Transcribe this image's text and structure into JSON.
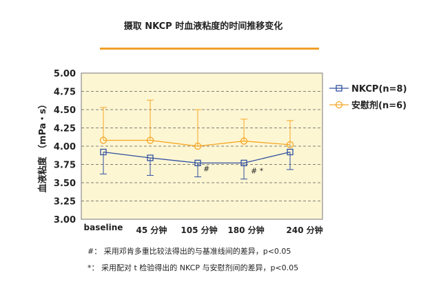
{
  "chart_data": {
    "type": "line",
    "title": "摄取 NKCP 时血液粘度的时间推移变化",
    "xlabel": "",
    "ylabel": "血液粘度 （mPa・s）",
    "ylim": [
      3.0,
      5.0
    ],
    "yticks": [
      "3.00",
      "3.25",
      "3.50",
      "3.75",
      "4.00",
      "4.25",
      "4.50",
      "4.75",
      "5.00"
    ],
    "grid": true,
    "legend": "right",
    "categories": [
      "baseline",
      "45 分钟",
      "105 分钟",
      "180 分钟",
      "240 分钟"
    ],
    "series": [
      {
        "name": "NKCP(n=8)",
        "color": "#2f4fa0",
        "marker": "square",
        "values": [
          3.92,
          3.84,
          3.77,
          3.77,
          3.92
        ],
        "error_low": [
          0.3,
          0.24,
          0.19,
          0.22,
          0.24
        ],
        "error_high": [
          0,
          0,
          0,
          0,
          0
        ]
      },
      {
        "name": "安慰剂(n=6)",
        "color": "#f5a623",
        "marker": "circle",
        "values": [
          4.08,
          4.08,
          4.0,
          4.07,
          4.02
        ],
        "error_low": [
          0,
          0,
          0,
          0,
          0
        ],
        "error_high": [
          0.45,
          0.55,
          0.5,
          0.3,
          0.33
        ]
      }
    ],
    "annotations": [
      {
        "category_index": 2,
        "text": "#"
      },
      {
        "category_index": 3,
        "text": "# *"
      }
    ]
  },
  "footnotes": [
    "#： 采用邓肯多重比较法得出的与基准线间的差异，p<0.05",
    "*： 采用配对 t 检验得出的 NKCP 与安慰剂间的差异，p<0.05"
  ],
  "colors": {
    "plot_background": "#fdf6d3",
    "title_rule": "#f0a028"
  }
}
